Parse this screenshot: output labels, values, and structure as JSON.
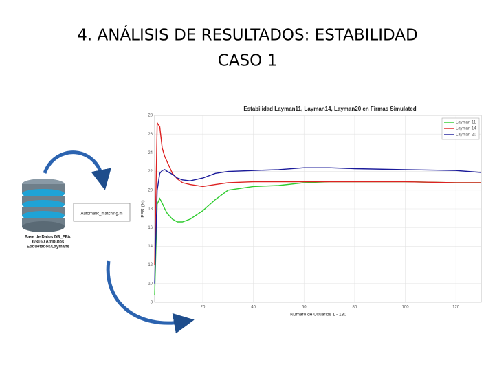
{
  "slide": {
    "title_lines": [
      "4. ANÁLISIS DE RESULTADOS: ESTABILIDAD",
      "CASO 1"
    ]
  },
  "diagram": {
    "database_label_lines": [
      "Base de Datos DB_FBio",
      "6/3160 Atributos",
      "Etiquetados/Laymans"
    ],
    "box_label": "Automatic_matching.m"
  },
  "chart_data": {
    "type": "line",
    "title": "Estabilidad Layman11, Layman14, Layman20 en Firmas Simulated",
    "x_label": "Número de Usuarios 1 - 130",
    "y_label": "EER (%)",
    "x": [
      1,
      2,
      3,
      4,
      5,
      6,
      8,
      10,
      12,
      15,
      20,
      25,
      30,
      40,
      50,
      60,
      70,
      80,
      100,
      120,
      130
    ],
    "series": [
      {
        "name": "Layman 11",
        "color": "#2ecc2e",
        "values": [
          8.8,
          18.5,
          19.1,
          18.6,
          18,
          17.5,
          16.9,
          16.6,
          16.6,
          16.9,
          17.8,
          19,
          20,
          20.4,
          20.5,
          20.8,
          20.9,
          20.9,
          20.9,
          20.8,
          20.8
        ]
      },
      {
        "name": "Layman 14",
        "color": "#dd2222",
        "values": [
          12,
          27.2,
          26.8,
          24.5,
          23.6,
          23,
          21.8,
          21.2,
          20.8,
          20.6,
          20.4,
          20.6,
          20.8,
          20.9,
          20.9,
          20.9,
          20.9,
          20.9,
          20.9,
          20.8,
          20.8
        ]
      },
      {
        "name": "Layman 20",
        "color": "#1a1a9a",
        "values": [
          10,
          20,
          21.8,
          22.1,
          22.2,
          22,
          21.7,
          21.3,
          21.1,
          21,
          21.3,
          21.8,
          22,
          22.1,
          22.2,
          22.4,
          22.4,
          22.3,
          22.2,
          22.1,
          21.9
        ]
      }
    ],
    "xlim": [
      1,
      130
    ],
    "ylim": [
      8,
      28
    ],
    "xticks": [
      20,
      40,
      60,
      80,
      100,
      120
    ],
    "yticks": [
      8,
      10,
      12,
      14,
      16,
      18,
      20,
      22,
      24,
      26,
      28
    ],
    "grid": true,
    "legend": "upper right"
  }
}
